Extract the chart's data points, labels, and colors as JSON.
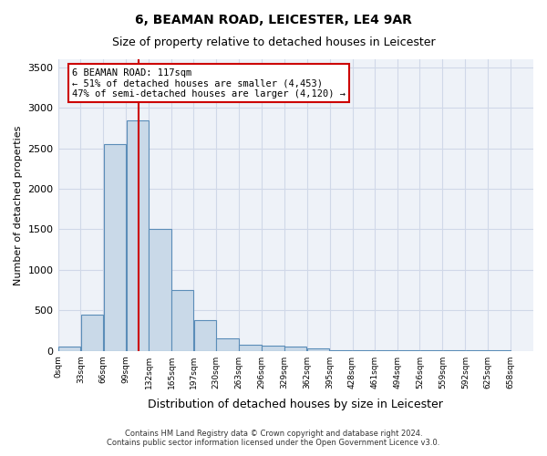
{
  "title1": "6, BEAMAN ROAD, LEICESTER, LE4 9AR",
  "title2": "Size of property relative to detached houses in Leicester",
  "xlabel": "Distribution of detached houses by size in Leicester",
  "ylabel": "Number of detached properties",
  "footer1": "Contains HM Land Registry data © Crown copyright and database right 2024.",
  "footer2": "Contains public sector information licensed under the Open Government Licence v3.0.",
  "annotation_line1": "6 BEAMAN ROAD: 117sqm",
  "annotation_line2": "← 51% of detached houses are smaller (4,453)",
  "annotation_line3": "47% of semi-detached houses are larger (4,120) →",
  "property_size": 117,
  "bins": [
    0,
    33,
    66,
    99,
    132,
    165,
    197,
    230,
    263,
    296,
    329,
    362,
    395,
    428,
    461,
    494,
    526,
    559,
    592,
    625,
    658
  ],
  "bar_heights": [
    50,
    450,
    2550,
    2850,
    1500,
    750,
    375,
    150,
    80,
    60,
    50,
    30,
    10,
    5,
    5,
    5,
    5,
    2,
    2,
    2
  ],
  "bar_color": "#c9d9e8",
  "bar_edge_color": "#5b8db8",
  "vline_color": "#cc0000",
  "vline_x": 117,
  "annotation_box_color": "#cc0000",
  "annotation_bg_color": "#ffffff",
  "ylim": [
    0,
    3600
  ],
  "yticks": [
    0,
    500,
    1000,
    1500,
    2000,
    2500,
    3000,
    3500
  ],
  "xlim": [
    0,
    691
  ],
  "tick_labels": [
    "0sqm",
    "33sqm",
    "66sqm",
    "99sqm",
    "132sqm",
    "165sqm",
    "197sqm",
    "230sqm",
    "263sqm",
    "296sqm",
    "329sqm",
    "362sqm",
    "395sqm",
    "428sqm",
    "461sqm",
    "494sqm",
    "526sqm",
    "559sqm",
    "592sqm",
    "625sqm",
    "658sqm"
  ],
  "grid_color": "#d0d8e8",
  "bg_color": "#eef2f8"
}
